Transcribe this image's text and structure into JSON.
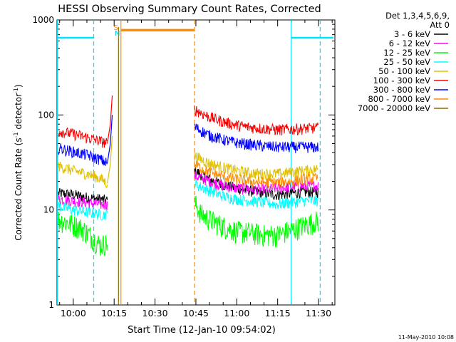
{
  "chart_data": {
    "type": "line",
    "title": "HESSI Observing Summary Count Rates, Corrected",
    "xlabel": "Start Time (12-Jan-10 09:54:02)",
    "ylabel_main": "Corrected Count Rate (s",
    "ylabel_exp1": "-1",
    "ylabel_mid": " detector",
    "ylabel_exp2": "-1",
    "ylabel_end": ")",
    "footer": "11-May-2010 10:08",
    "y_scale": "log",
    "ylim": [
      1,
      1000
    ],
    "xlim_minutes": [
      -5.97,
      96.0
    ],
    "x_ticks": [
      {
        "minutes": 0,
        "label": "10:00"
      },
      {
        "minutes": 15,
        "label": "10:15"
      },
      {
        "minutes": 30,
        "label": "10:30"
      },
      {
        "minutes": 45,
        "label": "10:45"
      },
      {
        "minutes": 60,
        "label": "11:00"
      },
      {
        "minutes": 75,
        "label": "11:15"
      },
      {
        "minutes": 90,
        "label": "11:30"
      }
    ],
    "y_ticks": [
      {
        "value": 1,
        "label": "1"
      },
      {
        "value": 10,
        "label": "10"
      },
      {
        "value": 100,
        "label": "100"
      },
      {
        "value": 1000,
        "label": "1000"
      }
    ],
    "legend": {
      "header_line1": "Det 1,3,4,5,6,9,",
      "header_line2": "Att 0",
      "placement": "right"
    },
    "series": [
      {
        "name": "3 - 6 keV",
        "color": "#000000",
        "pre": [
          [
            -5.5,
            15
          ],
          [
            0,
            14.5
          ],
          [
            5,
            13.5
          ],
          [
            10,
            13
          ],
          [
            12.5,
            12.5
          ]
        ],
        "post": [
          [
            44.5,
            26
          ],
          [
            50,
            21
          ],
          [
            55,
            18.5
          ],
          [
            60,
            17
          ],
          [
            65,
            16
          ],
          [
            70,
            15
          ],
          [
            75,
            14.5
          ],
          [
            80,
            15
          ],
          [
            85,
            15.5
          ],
          [
            90,
            15.5
          ]
        ]
      },
      {
        "name": "6 - 12 keV",
        "color": "#ff00ff",
        "pre": [
          [
            -5.5,
            13
          ],
          [
            0,
            12.5
          ],
          [
            5,
            12
          ],
          [
            10,
            11.5
          ],
          [
            12.5,
            11.5
          ]
        ],
        "post": [
          [
            44.5,
            23
          ],
          [
            50,
            20
          ],
          [
            55,
            18
          ],
          [
            60,
            17
          ],
          [
            65,
            16.5
          ],
          [
            70,
            16.5
          ],
          [
            75,
            17
          ],
          [
            80,
            17.5
          ],
          [
            85,
            18
          ],
          [
            90,
            18
          ]
        ]
      },
      {
        "name": "12 - 25 keV",
        "color": "#00ff00",
        "pre": [
          [
            -5.5,
            8
          ],
          [
            0,
            7
          ],
          [
            3,
            6.5
          ],
          [
            6,
            5.5
          ],
          [
            8,
            4.8
          ],
          [
            10,
            4.3
          ],
          [
            12.5,
            4.5
          ]
        ],
        "post": [
          [
            44.5,
            12
          ],
          [
            47,
            9
          ],
          [
            50,
            8
          ],
          [
            55,
            6.8
          ],
          [
            60,
            6
          ],
          [
            65,
            5.8
          ],
          [
            70,
            5.5
          ],
          [
            75,
            5.5
          ],
          [
            80,
            6.2
          ],
          [
            85,
            7
          ],
          [
            90,
            7.8
          ]
        ]
      },
      {
        "name": "25 - 50 keV",
        "color": "#00ffff",
        "pre": [
          [
            -5.5,
            11
          ],
          [
            0,
            10
          ],
          [
            5,
            9.5
          ],
          [
            10,
            9
          ],
          [
            12.5,
            9
          ]
        ],
        "post": [
          [
            44.5,
            19
          ],
          [
            50,
            16
          ],
          [
            55,
            14
          ],
          [
            60,
            13
          ],
          [
            65,
            12.5
          ],
          [
            70,
            12
          ],
          [
            75,
            11.5
          ],
          [
            80,
            12
          ],
          [
            85,
            12.5
          ],
          [
            90,
            12.5
          ]
        ]
      },
      {
        "name": "50 - 100 keV",
        "color": "#e0c000",
        "pre": [
          [
            -5.5,
            29
          ],
          [
            0,
            26
          ],
          [
            5,
            24
          ],
          [
            10,
            21.5
          ],
          [
            12.5,
            19
          ]
        ],
        "post": [
          [
            44.5,
            37
          ],
          [
            50,
            31
          ],
          [
            55,
            28
          ],
          [
            60,
            26
          ],
          [
            65,
            24.5
          ],
          [
            70,
            24
          ],
          [
            75,
            24
          ],
          [
            80,
            25
          ],
          [
            85,
            26
          ],
          [
            90,
            27
          ]
        ]
      },
      {
        "name": "100 - 300 keV",
        "color": "#ff0000",
        "pre": [
          [
            -5.5,
            68
          ],
          [
            0,
            63
          ],
          [
            5,
            58
          ],
          [
            10,
            53
          ],
          [
            12.5,
            50
          ]
        ],
        "post": [
          [
            44.5,
            115
          ],
          [
            47,
            105
          ],
          [
            50,
            95
          ],
          [
            55,
            85
          ],
          [
            60,
            78
          ],
          [
            65,
            74
          ],
          [
            70,
            72
          ],
          [
            75,
            70
          ],
          [
            80,
            71
          ],
          [
            85,
            72
          ],
          [
            90,
            73
          ]
        ]
      },
      {
        "name": "300 - 800 keV",
        "color": "#0000ff",
        "pre": [
          [
            -5.5,
            45
          ],
          [
            0,
            41
          ],
          [
            5,
            38
          ],
          [
            10,
            34
          ],
          [
            12.5,
            31
          ]
        ],
        "post": [
          [
            44.5,
            75
          ],
          [
            47,
            68
          ],
          [
            50,
            61
          ],
          [
            55,
            55
          ],
          [
            60,
            51
          ],
          [
            65,
            49
          ],
          [
            70,
            47
          ],
          [
            75,
            46
          ],
          [
            80,
            46
          ],
          [
            85,
            46
          ],
          [
            90,
            46
          ]
        ]
      },
      {
        "name": "800 - 7000 keV",
        "color": "#ff8c00",
        "pre": [],
        "post": [
          [
            44.5,
            30
          ],
          [
            50,
            25
          ],
          [
            55,
            22.5
          ],
          [
            60,
            21
          ],
          [
            65,
            20
          ],
          [
            70,
            19.5
          ],
          [
            75,
            19.5
          ],
          [
            80,
            20
          ],
          [
            85,
            21
          ],
          [
            90,
            21.5
          ]
        ]
      },
      {
        "name": "7000 - 20000 keV",
        "color": "#8b6a00",
        "pre": [],
        "post": []
      }
    ],
    "markers": {
      "saa_cyan_segments": [
        [
          -5.8,
          7.5
        ],
        [
          80,
          95.5
        ]
      ],
      "saa_cyan_level": 650,
      "saa_cyan_dashed_x": [
        7.5,
        90.6
      ],
      "saa_cyan_solid_x": [
        -5.8,
        80
      ],
      "night_orange_segment": [
        17.5,
        44.5
      ],
      "night_orange_level": 780,
      "night_orange_solid_x": 17.5,
      "night_orange_dashed_x": 44.5,
      "s_label": "S",
      "n_label": "N"
    },
    "grid": false
  }
}
